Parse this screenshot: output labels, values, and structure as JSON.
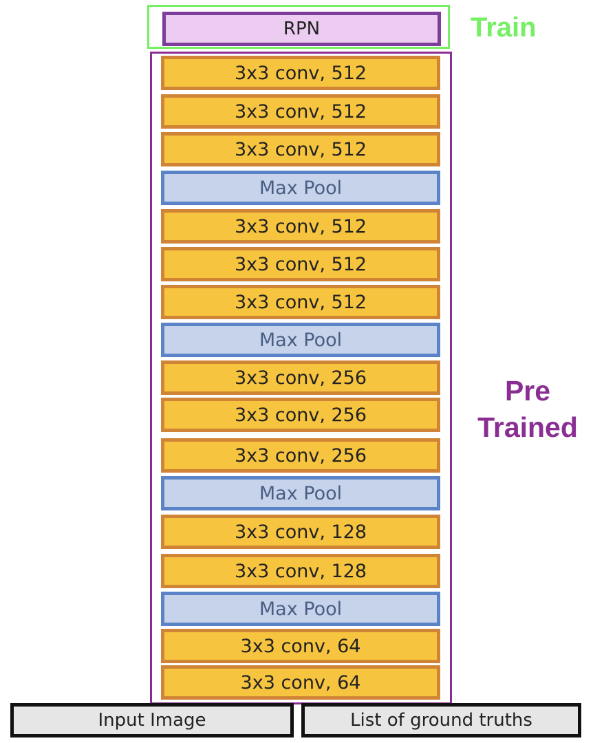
{
  "labels": {
    "train": "Train",
    "pretrained_line1": "Pre",
    "pretrained_line2": "Trained"
  },
  "rpn": {
    "label": "RPN"
  },
  "layers": [
    {
      "label": "3x3 conv, 512",
      "kind": "conv"
    },
    {
      "label": "3x3 conv, 512",
      "kind": "conv"
    },
    {
      "label": "3x3 conv, 512",
      "kind": "conv"
    },
    {
      "label": "Max Pool",
      "kind": "pool"
    },
    {
      "label": "3x3 conv, 512",
      "kind": "conv"
    },
    {
      "label": "3x3 conv, 512",
      "kind": "conv"
    },
    {
      "label": "3x3 conv, 512",
      "kind": "conv"
    },
    {
      "label": "Max Pool",
      "kind": "pool"
    },
    {
      "label": "3x3 conv, 256",
      "kind": "conv"
    },
    {
      "label": "3x3 conv, 256",
      "kind": "conv"
    },
    {
      "label": "3x3 conv, 256",
      "kind": "conv"
    },
    {
      "label": "Max Pool",
      "kind": "pool"
    },
    {
      "label": "3x3 conv, 128",
      "kind": "conv"
    },
    {
      "label": "3x3 conv, 128",
      "kind": "conv"
    },
    {
      "label": "Max Pool",
      "kind": "pool"
    },
    {
      "label": "3x3 conv, 64",
      "kind": "conv"
    },
    {
      "label": "3x3 conv, 64",
      "kind": "conv"
    }
  ],
  "inputs": {
    "image": "Input Image",
    "ground_truths": "List of ground truths"
  },
  "colors": {
    "train": "#77ef65",
    "pretrained": "#8b2e93",
    "conv_fill": "#f7c43f",
    "conv_border": "#d08435",
    "pool_fill": "#c6d3ea",
    "pool_border": "#5a84c7",
    "rpn_fill": "#eccdf1",
    "rpn_border": "#7d3d9a"
  }
}
